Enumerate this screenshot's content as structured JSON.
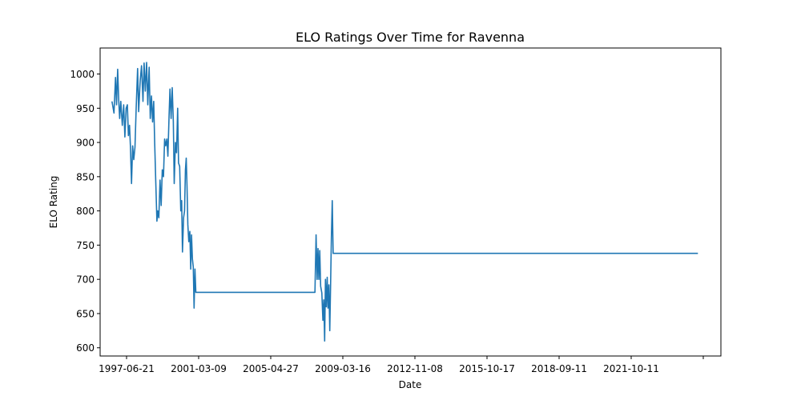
{
  "chart_data": {
    "type": "line",
    "title": "ELO Ratings Over Time for Ravenna",
    "xlabel": "Date",
    "ylabel": "ELO Rating",
    "x_type": "date",
    "xlim": [
      "1996-12-01",
      "2027-04-01"
    ],
    "ylim": [
      588,
      1038
    ],
    "x_ticks": [
      "1997-06-21",
      "2001-03-09",
      "2005-04-27",
      "2009-03-16",
      "2012-11-08",
      "2015-10-17",
      "2018-09-11",
      "2021-10-11",
      ""
    ],
    "y_ticks": [
      600,
      650,
      700,
      750,
      800,
      850,
      900,
      950,
      1000
    ],
    "grid": false,
    "color": "#1f77b4",
    "series": [
      {
        "points": [
          [
            "1997-07-01",
            960
          ],
          [
            "1997-08-05",
            943
          ],
          [
            "1997-09-01",
            995
          ],
          [
            "1997-09-20",
            955
          ],
          [
            "1997-10-10",
            1007
          ],
          [
            "1997-10-28",
            962
          ],
          [
            "1997-11-15",
            935
          ],
          [
            "1997-12-05",
            960
          ],
          [
            "1998-01-01",
            925
          ],
          [
            "1998-01-25",
            955
          ],
          [
            "1998-02-15",
            908
          ],
          [
            "1998-03-10",
            950
          ],
          [
            "1998-04-01",
            955
          ],
          [
            "1998-04-20",
            910
          ],
          [
            "1998-05-10",
            925
          ],
          [
            "1998-05-25",
            895
          ],
          [
            "1998-06-15",
            840
          ],
          [
            "1998-07-05",
            895
          ],
          [
            "1998-07-25",
            875
          ],
          [
            "1998-08-15",
            893
          ],
          [
            "1998-09-05",
            950
          ],
          [
            "1998-10-01",
            1008
          ],
          [
            "1998-10-20",
            945
          ],
          [
            "1998-11-15",
            990
          ],
          [
            "1998-12-10",
            1012
          ],
          [
            "1999-01-05",
            960
          ],
          [
            "1999-01-25",
            1016
          ],
          [
            "1999-02-15",
            975
          ],
          [
            "1999-03-10",
            1017
          ],
          [
            "1999-04-01",
            955
          ],
          [
            "1999-04-25",
            1010
          ],
          [
            "1999-05-15",
            935
          ],
          [
            "1999-06-05",
            968
          ],
          [
            "1999-06-25",
            930
          ],
          [
            "1999-07-15",
            960
          ],
          [
            "1999-08-01",
            900
          ],
          [
            "1999-08-20",
            845
          ],
          [
            "1999-09-10",
            785
          ],
          [
            "1999-09-25",
            800
          ],
          [
            "1999-10-15",
            790
          ],
          [
            "1999-11-05",
            845
          ],
          [
            "1999-11-25",
            808
          ],
          [
            "1999-12-15",
            860
          ],
          [
            "2000-01-05",
            850
          ],
          [
            "2000-01-25",
            905
          ],
          [
            "2000-02-15",
            895
          ],
          [
            "2000-03-05",
            905
          ],
          [
            "2000-03-25",
            880
          ],
          [
            "2000-04-15",
            940
          ],
          [
            "2000-05-01",
            978
          ],
          [
            "2000-05-20",
            935
          ],
          [
            "2000-06-10",
            980
          ],
          [
            "2000-06-30",
            930
          ],
          [
            "2000-07-15",
            840
          ],
          [
            "2000-08-05",
            900
          ],
          [
            "2000-08-25",
            885
          ],
          [
            "2000-09-15",
            950
          ],
          [
            "2000-10-01",
            870
          ],
          [
            "2000-10-20",
            865
          ],
          [
            "2000-11-10",
            800
          ],
          [
            "2000-11-25",
            815
          ],
          [
            "2000-12-10",
            740
          ],
          [
            "2000-12-30",
            790
          ],
          [
            "2001-01-15",
            800
          ],
          [
            "2001-02-01",
            860
          ],
          [
            "2001-02-15",
            877
          ],
          [
            "2001-03-01",
            835
          ],
          [
            "2001-03-15",
            780
          ],
          [
            "2001-04-01",
            755
          ],
          [
            "2001-04-20",
            770
          ],
          [
            "2001-05-05",
            715
          ],
          [
            "2001-05-20",
            765
          ],
          [
            "2001-06-05",
            730
          ],
          [
            "2001-06-20",
            718
          ],
          [
            "2001-07-05",
            658
          ],
          [
            "2001-07-20",
            715
          ],
          [
            "2001-08-05",
            681
          ],
          [
            "2007-06-01",
            681
          ],
          [
            "2007-06-20",
            765
          ],
          [
            "2007-07-10",
            700
          ],
          [
            "2007-07-25",
            745
          ],
          [
            "2007-08-10",
            700
          ],
          [
            "2007-08-25",
            742
          ],
          [
            "2007-09-10",
            690
          ],
          [
            "2007-10-01",
            680
          ],
          [
            "2007-10-20",
            640
          ],
          [
            "2007-11-05",
            670
          ],
          [
            "2007-11-20",
            610
          ],
          [
            "2007-12-05",
            700
          ],
          [
            "2007-12-20",
            660
          ],
          [
            "2008-01-05",
            703
          ],
          [
            "2008-01-20",
            658
          ],
          [
            "2008-02-05",
            692
          ],
          [
            "2008-02-20",
            625
          ],
          [
            "2008-03-05",
            690
          ],
          [
            "2008-03-20",
            760
          ],
          [
            "2008-04-05",
            815
          ],
          [
            "2008-04-20",
            738
          ],
          [
            "2026-02-15",
            738
          ]
        ]
      }
    ]
  }
}
